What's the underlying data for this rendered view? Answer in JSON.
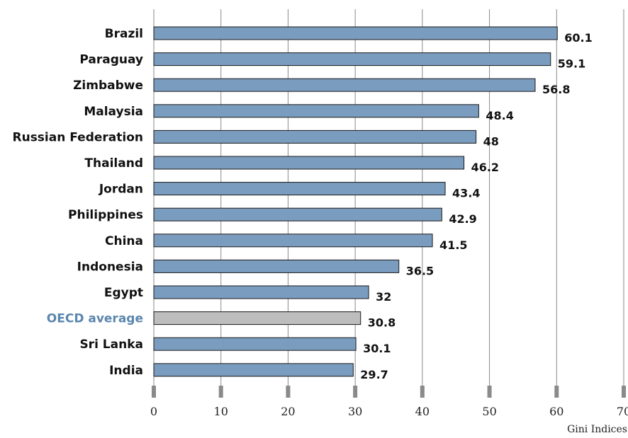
{
  "chart_data": {
    "type": "bar",
    "orientation": "horizontal",
    "categories": [
      "Brazil",
      "Paraguay",
      "Zimbabwe",
      "Malaysia",
      "Russian Federation",
      "Thailand",
      "Jordan",
      "Philippines",
      "China",
      "Indonesia",
      "Egypt",
      "OECD average",
      "Sri Lanka",
      "India"
    ],
    "values": [
      60.1,
      59.1,
      56.8,
      48.4,
      48,
      46.2,
      43.4,
      42.9,
      41.5,
      36.5,
      32,
      30.8,
      30.1,
      29.7
    ],
    "value_labels": [
      "60.1",
      "59.1",
      "56.8",
      "48.4",
      "48",
      "46.2",
      "43.4",
      "42.9",
      "41.5",
      "36.5",
      "32",
      "30.8",
      "30.1",
      "29.7"
    ],
    "highlight_category": "OECD average",
    "xlabel": "Gini Indices",
    "xlim": [
      0,
      70
    ],
    "xticks": [
      "0",
      "10",
      "20",
      "30",
      "40",
      "50",
      "60",
      "70"
    ],
    "grid": "vertical",
    "colors": {
      "bar": "#7a9cbf",
      "highlight_bar": "#bdbdbd",
      "highlight_label": "#5b86ad",
      "grid": "#8a8a8a",
      "tick_marks": "#8a8a8a"
    }
  }
}
